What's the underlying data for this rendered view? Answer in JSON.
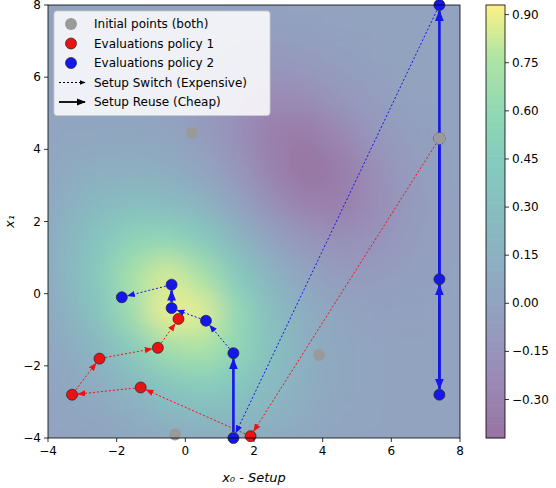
{
  "chart_data": {
    "type": "scatter",
    "x_label": "x₀ - Setup",
    "y_label": "x₁",
    "xlim": [
      -4,
      8
    ],
    "ylim": [
      -4,
      8
    ],
    "xticks": [
      {
        "value": -4,
        "label": "−4"
      },
      {
        "value": -2,
        "label": "−2"
      },
      0,
      2,
      4,
      6,
      8
    ],
    "yticks": [
      {
        "value": -4,
        "label": "−4"
      },
      {
        "value": -2,
        "label": "−2"
      },
      0,
      2,
      4,
      6,
      8
    ],
    "legend": "upper left",
    "series": [
      {
        "name": "Initial points (both)",
        "type": "scatter",
        "color": "#9a9a9a",
        "marker": "circle",
        "x": [
          0.2,
          3.9,
          -0.3,
          7.4
        ],
        "y": [
          4.45,
          -1.7,
          -3.9,
          4.3
        ]
      },
      {
        "name": "Evaluations policy 1",
        "type": "trajectory",
        "color": "#ee1111",
        "marker": "circle",
        "x": [
          7.4,
          1.9,
          -1.3,
          -3.3,
          -2.5,
          -0.8,
          -0.2
        ],
        "y": [
          4.3,
          -3.95,
          -2.6,
          -2.8,
          -1.8,
          -1.5,
          -0.7
        ]
      },
      {
        "name": "Evaluations policy 2",
        "type": "trajectory",
        "color": "#1515ee",
        "marker": "circle",
        "x": [
          7.4,
          7.4,
          7.4,
          7.4,
          1.4,
          1.4,
          0.6,
          -0.4,
          -0.4,
          -1.85
        ],
        "y": [
          4.3,
          -2.8,
          0.4,
          8.0,
          -4.0,
          -1.65,
          -0.75,
          -0.4,
          0.25,
          -0.1
        ]
      }
    ],
    "arrows": {
      "switch": {
        "name": "Setup Switch (Expensive)",
        "line_style": "dotted"
      },
      "reuse": {
        "name": "Setup Reuse (Cheap)",
        "line_style": "solid"
      }
    },
    "heatmap": {
      "x_edges": [
        -4,
        -3,
        -2,
        -1,
        0,
        1,
        2,
        3,
        4,
        5,
        6,
        7,
        8
      ],
      "y_edges": [
        -4,
        -3,
        -2,
        -1,
        0,
        1,
        2,
        3,
        4,
        5,
        6,
        7,
        8
      ],
      "values": [
        [
          0.01,
          0.03,
          0.08,
          0.16,
          0.21,
          0.21,
          0.15,
          0.08,
          0.02,
          0.01,
          0,
          0
        ],
        [
          0.03,
          0.1,
          0.23,
          0.39,
          0.47,
          0.41,
          0.26,
          0.12,
          0.04,
          0.01,
          0,
          0
        ],
        [
          0.08,
          0.22,
          0.46,
          0.69,
          0.75,
          0.59,
          0.33,
          0.13,
          0.04,
          0.01,
          0,
          0
        ],
        [
          0.14,
          0.37,
          0.68,
          0.9,
          0.87,
          0.6,
          0.3,
          0.11,
          0.01,
          -0.02,
          -0.02,
          -0.01
        ],
        [
          0.2,
          0.44,
          0.72,
          0.85,
          0.72,
          0.44,
          0.18,
          0.01,
          -0.07,
          -0.07,
          -0.04,
          -0.02
        ],
        [
          0.19,
          0.38,
          0.55,
          0.58,
          0.44,
          0.21,
          0.0,
          -0.13,
          -0.18,
          -0.15,
          -0.08,
          -0.03
        ],
        [
          0.13,
          0.24,
          0.3,
          0.28,
          0.17,
          0.0,
          -0.18,
          -0.31,
          -0.33,
          -0.22,
          -0.1,
          -0.03
        ],
        [
          0.07,
          0.11,
          0.12,
          0.09,
          0.01,
          -0.13,
          -0.31,
          -0.42,
          -0.36,
          -0.2,
          -0.08,
          -0.02
        ],
        [
          0.02,
          0.03,
          0.03,
          0.01,
          -0.07,
          -0.19,
          -0.33,
          -0.36,
          -0.26,
          -0.12,
          -0.04,
          -0.01
        ],
        [
          0.01,
          0.01,
          0.01,
          -0.02,
          -0.07,
          -0.15,
          -0.22,
          -0.2,
          -0.12,
          -0.05,
          -0.01,
          0
        ],
        [
          0,
          0,
          0,
          -0.02,
          -0.04,
          -0.08,
          -0.1,
          -0.08,
          -0.04,
          -0.01,
          0,
          0
        ],
        [
          0,
          0,
          0,
          -0.01,
          -0.02,
          -0.03,
          -0.03,
          -0.02,
          -0.01,
          0,
          0,
          0
        ]
      ]
    },
    "colorbar": {
      "range": [
        -0.42,
        0.93
      ],
      "ticks": [
        {
          "value": -0.3,
          "label": "−0.30"
        },
        {
          "value": -0.15,
          "label": "−0.15"
        },
        {
          "value": 0,
          "label": "0.00"
        },
        {
          "value": 0.15,
          "label": "0.15"
        },
        {
          "value": 0.3,
          "label": "0.30"
        },
        {
          "value": 0.45,
          "label": "0.45"
        },
        {
          "value": 0.6,
          "label": "0.60"
        },
        {
          "value": 0.75,
          "label": "0.75"
        },
        {
          "value": 0.9,
          "label": "0.90"
        }
      ]
    }
  }
}
